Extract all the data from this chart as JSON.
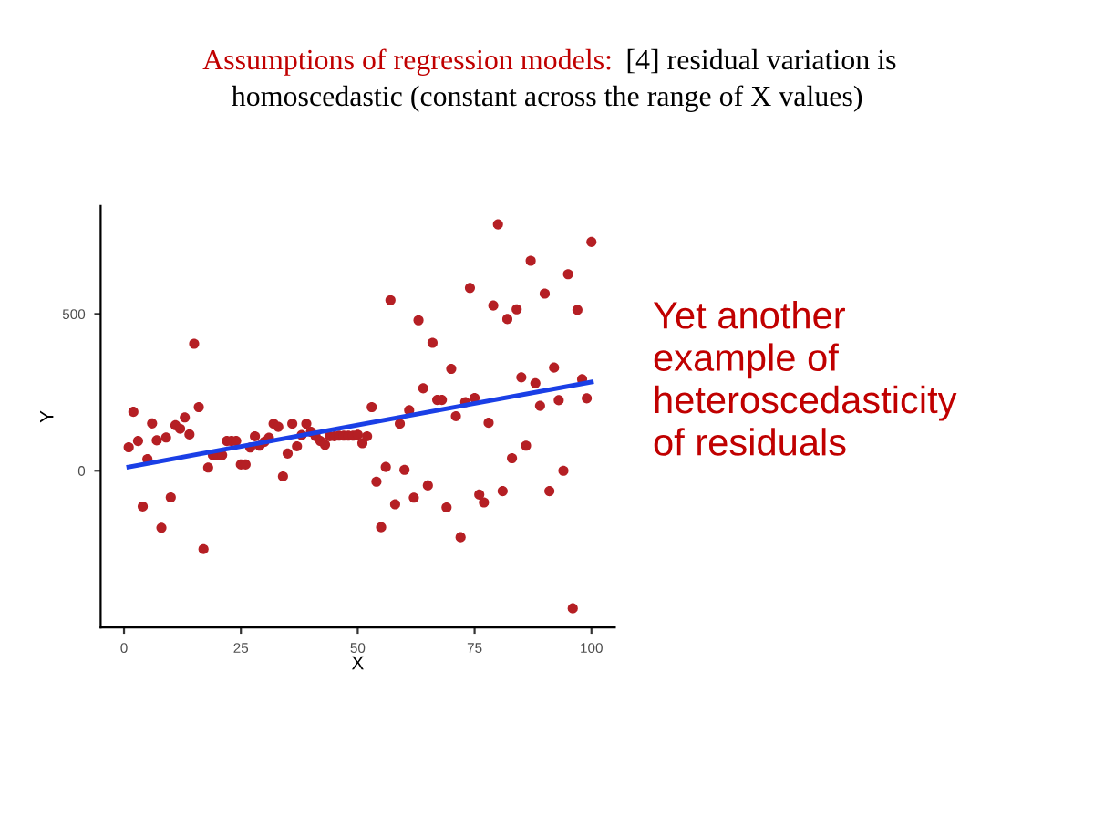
{
  "chart_data": {
    "type": "scatter",
    "title": "Assumptions of regression models:",
    "subtitle": "[4] residual variation is homoscedastic (constant across the range of X values)",
    "xlabel": "X",
    "ylabel": "Y",
    "annotations": [
      "Yet another\nexample of\nheteroscedasticity\nof residuals"
    ],
    "xlim": [
      -5,
      105
    ],
    "ylim": [
      -500,
      845
    ],
    "xticks": [
      0,
      25,
      50,
      75,
      100
    ],
    "yticks": [
      0,
      500
    ],
    "grid": false,
    "series": [
      {
        "marker": "circle",
        "color": "#b51f24",
        "x": [
          1,
          2,
          3,
          4,
          5,
          6,
          7,
          8,
          9,
          10,
          11,
          12,
          13,
          14,
          15,
          16,
          17,
          18,
          19,
          20,
          21,
          22,
          23,
          24,
          25,
          26,
          27,
          28,
          29,
          30,
          31,
          32,
          33,
          34,
          35,
          36,
          37,
          38,
          39,
          40,
          41,
          42,
          43,
          44,
          45,
          46,
          47,
          48,
          49,
          50,
          51,
          52,
          53,
          54,
          55,
          56,
          57,
          58,
          59,
          60,
          61,
          62,
          63,
          64,
          65,
          66,
          67,
          68,
          69,
          70,
          71,
          72,
          73,
          74,
          75,
          76,
          77,
          78,
          79,
          80,
          81,
          82,
          83,
          84,
          85,
          86,
          87,
          88,
          89,
          90,
          91,
          92,
          93,
          94,
          95,
          96,
          97,
          98,
          99,
          100
        ],
        "values": [
          75,
          188,
          95,
          -114,
          37,
          151,
          97,
          -182,
          106,
          -85,
          145,
          134,
          170,
          116,
          405,
          203,
          -250,
          10,
          50,
          50,
          50,
          95,
          95,
          95,
          20,
          20,
          74,
          110,
          80,
          92,
          105,
          150,
          140,
          -18,
          55,
          150,
          78,
          114,
          150,
          124,
          110,
          95,
          83,
          110,
          110,
          112,
          112,
          112,
          112,
          115,
          88,
          110,
          203,
          -35,
          -180,
          12,
          544,
          -107,
          150,
          3,
          193,
          -86,
          480,
          263,
          -47,
          408,
          226,
          226,
          -117,
          325,
          174,
          -212,
          219,
          583,
          232,
          -76,
          -101,
          153,
          527,
          786,
          -65,
          484,
          40,
          515,
          298,
          80,
          670,
          279,
          207,
          565,
          -65,
          329,
          225,
          0,
          627,
          -439,
          513,
          292,
          231,
          730
        ]
      },
      {
        "type": "line",
        "color": "#1a3fe6",
        "x": [
          1,
          100
        ],
        "values": [
          12,
          283
        ]
      }
    ]
  }
}
